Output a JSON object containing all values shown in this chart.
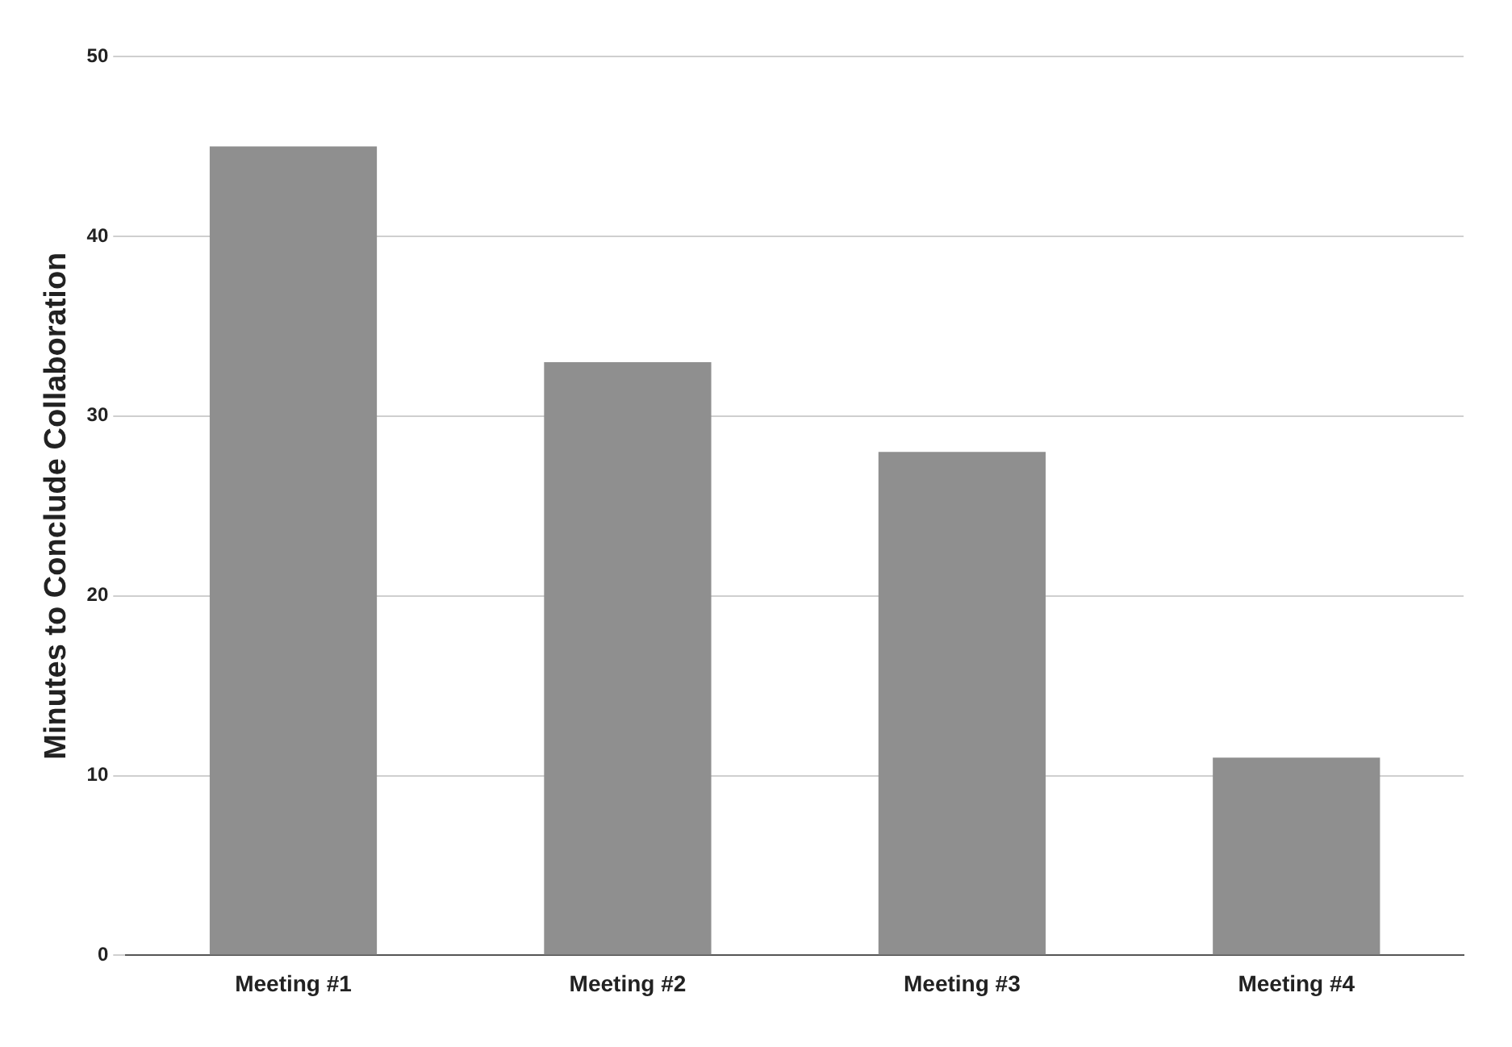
{
  "chart_data": {
    "type": "bar",
    "ylabel": "Minutes to Conclude Collaboration",
    "categories": [
      "Meeting #1",
      "Meeting #2",
      "Meeting #3",
      "Meeting #4"
    ],
    "values": [
      45,
      33,
      28,
      11
    ],
    "color": "#8f8f8f",
    "ylim": [
      0,
      50
    ],
    "yticks": [
      0,
      10,
      20,
      30,
      40,
      50
    ],
    "grid": "y"
  }
}
